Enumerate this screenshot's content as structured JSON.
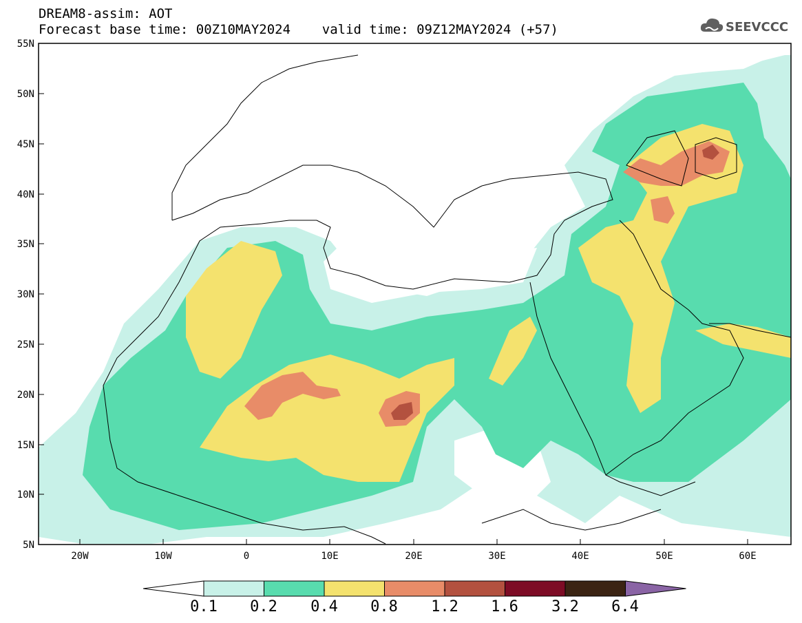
{
  "header": {
    "title_line1": "DREAM8-assim: AOT",
    "title_line2": "Forecast base time: 00Z10MAY2024    valid time: 09Z12MAY2024 (+57)"
  },
  "logo": {
    "text": "SEEVCCC",
    "icon": "cloud-logo-icon"
  },
  "map": {
    "lat_labels": [
      "55N",
      "50N",
      "45N",
      "40N",
      "35N",
      "30N",
      "25N",
      "20N",
      "15N",
      "10N",
      "5N"
    ],
    "lon_labels": [
      "20W",
      "10W",
      "0",
      "10E",
      "20E",
      "30E",
      "40E",
      "50E",
      "60E"
    ],
    "extent": {
      "lon": [
        -25,
        65
      ],
      "lat": [
        5,
        55
      ]
    }
  },
  "colorbar": {
    "labels": [
      "0.1",
      "0.2",
      "0.4",
      "0.8",
      "1.2",
      "1.6",
      "3.2",
      "6.4"
    ],
    "colors": [
      "#ffffff",
      "#c8f1e8",
      "#58dcae",
      "#f4e26e",
      "#e88c68",
      "#b3513f",
      "#7d0c25",
      "#3b2413",
      "#8a64a5"
    ]
  }
}
